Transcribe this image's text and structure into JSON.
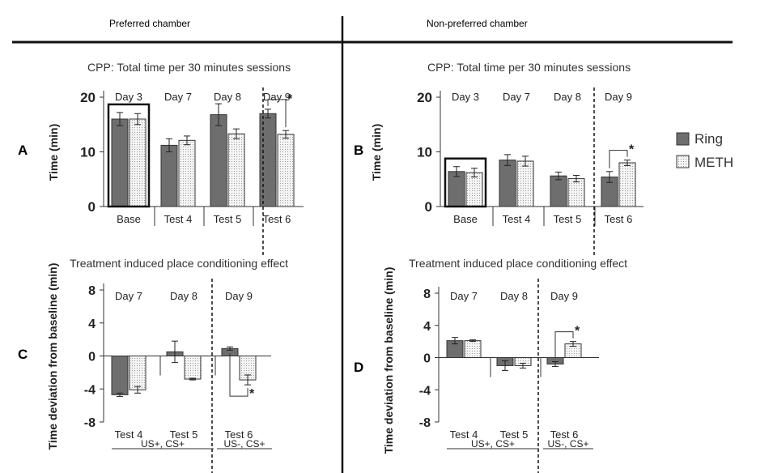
{
  "headers": {
    "left": "Preferred chamber",
    "right": "Non-preferred chamber"
  },
  "legend": {
    "ring": "Ring",
    "meth": "METH"
  },
  "colors": {
    "ring": "#6e6e6e",
    "meth": "#f4f4f4"
  },
  "chart_data": [
    {
      "panel": "A",
      "type": "bar",
      "title": "CPP: Total time per 30 minutes sessions",
      "ylabel": "Time (min)",
      "ylim": [
        0,
        20
      ],
      "yticks": [
        0,
        10,
        20
      ],
      "categories": [
        "Base",
        "Test 4",
        "Test 5",
        "Test 6"
      ],
      "day_labels": [
        "Day 3",
        "Day 7",
        "Day 8",
        "Day 9"
      ],
      "series": [
        {
          "name": "Ring",
          "values": [
            16.0,
            11.2,
            16.8,
            17.0
          ],
          "errors": [
            1.2,
            1.2,
            2.0,
            0.8
          ]
        },
        {
          "name": "METH",
          "values": [
            16.0,
            12.1,
            13.3,
            13.2
          ],
          "errors": [
            1.0,
            0.8,
            0.9,
            0.7
          ]
        }
      ],
      "annotations": [
        "*"
      ]
    },
    {
      "panel": "B",
      "type": "bar",
      "title": "CPP: Total time per 30 minutes sessions",
      "ylabel": "Time (min)",
      "ylim": [
        0,
        20
      ],
      "yticks": [
        0,
        10,
        20
      ],
      "categories": [
        "Base",
        "Test 4",
        "Test 5",
        "Test 6"
      ],
      "day_labels": [
        "Day 3",
        "Day 7",
        "Day 8",
        "Day 9"
      ],
      "series": [
        {
          "name": "Ring",
          "values": [
            6.4,
            8.5,
            5.6,
            5.4
          ],
          "errors": [
            0.9,
            1.0,
            0.7,
            1.0
          ]
        },
        {
          "name": "METH",
          "values": [
            6.2,
            8.3,
            5.1,
            8.0
          ],
          "errors": [
            0.8,
            0.9,
            0.6,
            0.5
          ]
        }
      ],
      "annotations": [
        "*"
      ]
    },
    {
      "panel": "C",
      "type": "bar",
      "title": "Treatment induced place conditioning effect",
      "ylabel": "Time deviation from baseline (min)",
      "ylim": [
        -8,
        8
      ],
      "yticks": [
        -8,
        -4,
        0,
        4,
        8
      ],
      "categories": [
        "Test 4",
        "Test 5",
        "Test 6"
      ],
      "day_labels": [
        "Day 7",
        "Day 8",
        "Day 9"
      ],
      "group_labels": [
        "US+, CS+",
        "US-, CS+"
      ],
      "series": [
        {
          "name": "Ring",
          "values": [
            -4.7,
            0.5,
            0.9
          ],
          "errors": [
            0.2,
            1.3,
            0.2
          ]
        },
        {
          "name": "METH",
          "values": [
            -4.1,
            -2.8,
            -2.9
          ],
          "errors": [
            0.4,
            0.1,
            0.6
          ]
        }
      ],
      "annotations": [
        "*"
      ]
    },
    {
      "panel": "D",
      "type": "bar",
      "title": "Treatment induced place conditioning effect",
      "ylabel": "Time deviation from baseline (min)",
      "ylim": [
        -8,
        8
      ],
      "yticks": [
        -8,
        -4,
        0,
        4,
        8
      ],
      "categories": [
        "Test 4",
        "Test 5",
        "Test 6"
      ],
      "day_labels": [
        "Day 7",
        "Day 8",
        "Day 9"
      ],
      "group_labels": [
        "US+, CS+",
        "US-, CS+"
      ],
      "series": [
        {
          "name": "Ring",
          "values": [
            2.1,
            -1.0,
            -0.8
          ],
          "errors": [
            0.4,
            0.6,
            0.3
          ]
        },
        {
          "name": "METH",
          "values": [
            2.1,
            -1.0,
            1.7
          ],
          "errors": [
            0.1,
            0.3,
            0.3
          ]
        }
      ],
      "annotations": [
        "*"
      ]
    }
  ]
}
